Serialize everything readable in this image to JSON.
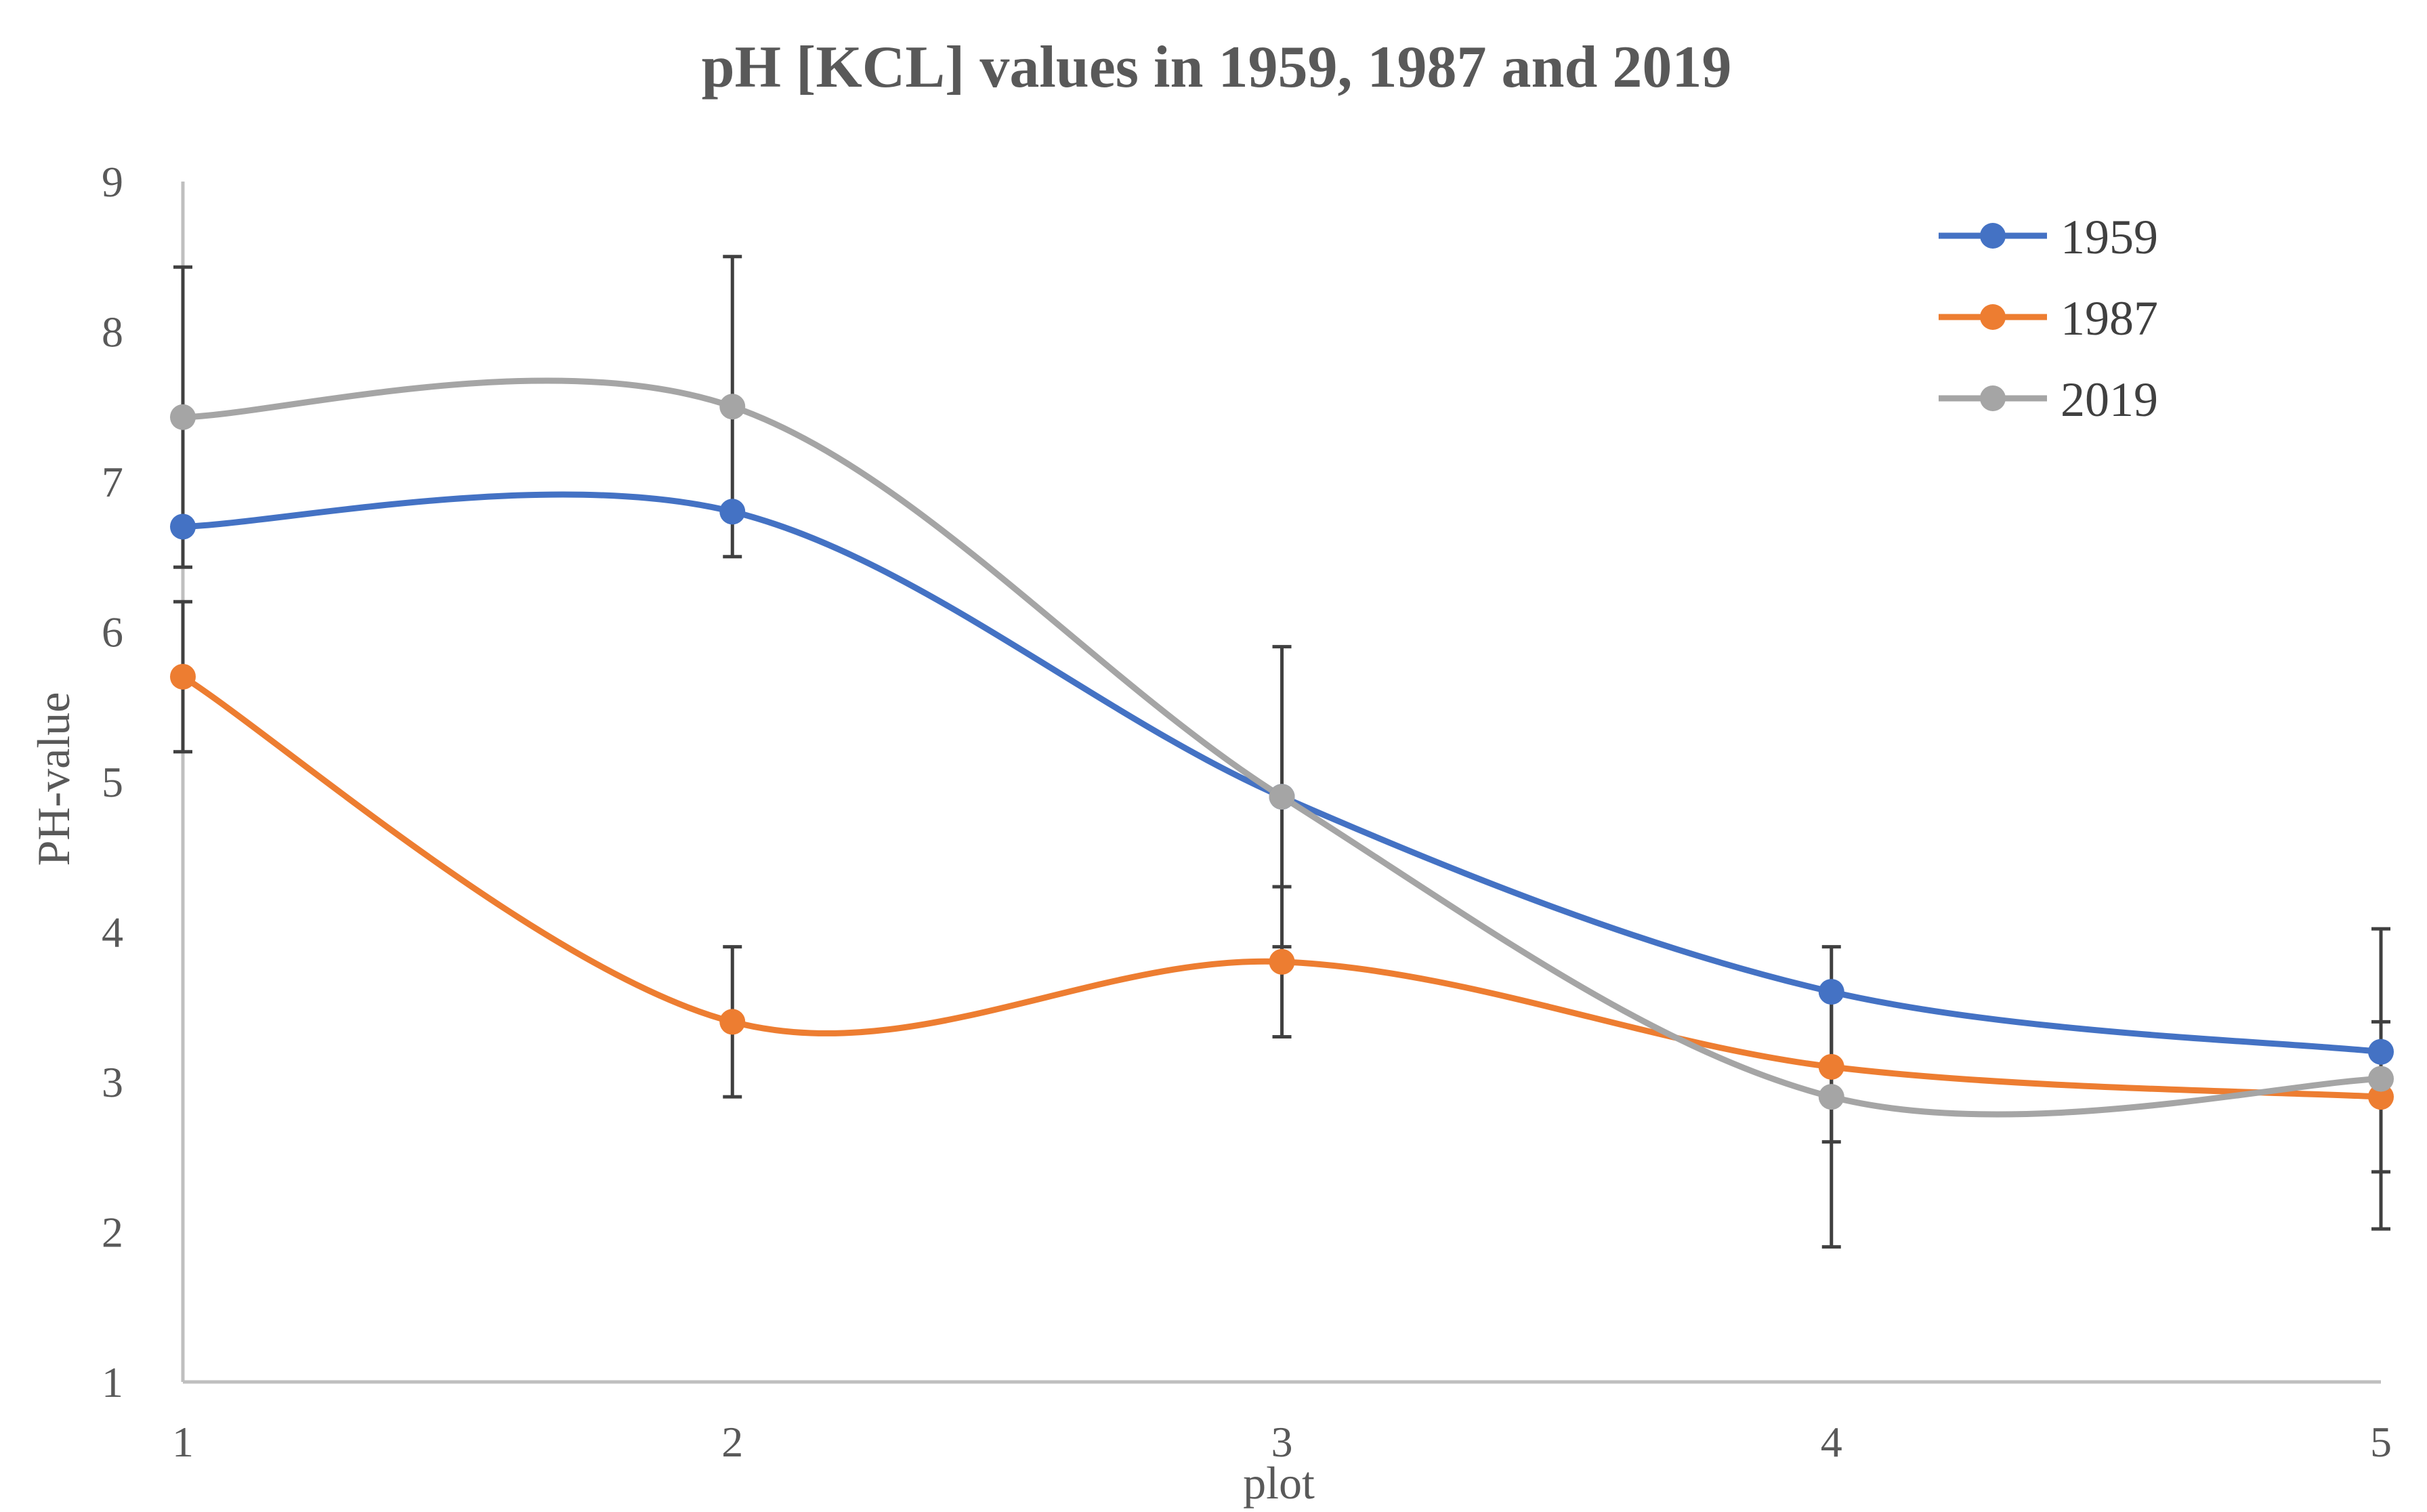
{
  "chart_data": {
    "type": "line",
    "title": "pH [KCL] values in 1959, 1987 and 2019",
    "xlabel": "plot",
    "ylabel": "PH-value",
    "categories": [
      "1",
      "2",
      "3",
      "4",
      "5"
    ],
    "x": [
      1,
      2,
      3,
      4,
      5
    ],
    "ylim": [
      1,
      9
    ],
    "yticks": [
      "1",
      "2",
      "3",
      "4",
      "5",
      "6",
      "7",
      "8",
      "9"
    ],
    "grid": false,
    "smooth": true,
    "legend_position": "top-right",
    "series": [
      {
        "name": "1959",
        "color": "#4472C4",
        "values": [
          6.7,
          6.8,
          4.9,
          3.6,
          3.2
        ]
      },
      {
        "name": "1987",
        "color": "#ED7D31",
        "values": [
          5.7,
          3.4,
          3.8,
          3.1,
          2.9
        ],
        "error_low": [
          5.2,
          2.9,
          3.3,
          2.6,
          2.4
        ],
        "error_high": [
          6.2,
          3.9,
          4.3,
          3.6,
          3.4
        ]
      },
      {
        "name": "2019",
        "color": "#A5A5A5",
        "values": [
          7.43,
          7.5,
          4.9,
          2.9,
          3.02
        ],
        "error_low": [
          6.43,
          6.5,
          3.9,
          1.9,
          2.02
        ],
        "error_high": [
          8.43,
          8.5,
          5.9,
          3.9,
          4.02
        ]
      }
    ],
    "error_bar_color": "#404040"
  }
}
